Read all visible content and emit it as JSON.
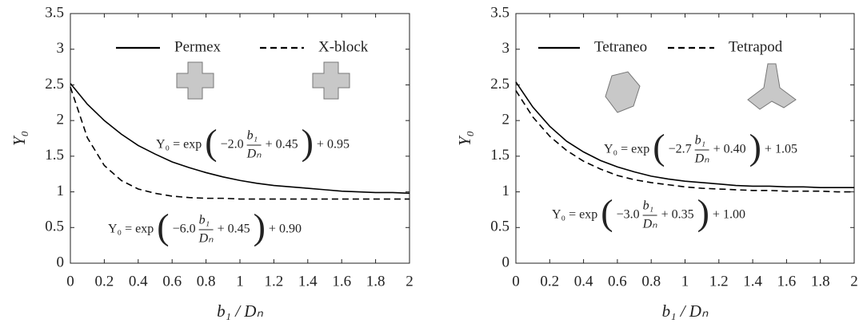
{
  "chart_data": [
    {
      "type": "line",
      "xlabel": "b₁ / Dₙ",
      "ylabel": "Y₀",
      "x": [
        0,
        0.1,
        0.2,
        0.3,
        0.4,
        0.5,
        0.6,
        0.7,
        0.8,
        0.9,
        1.0,
        1.1,
        1.2,
        1.3,
        1.4,
        1.5,
        1.6,
        1.7,
        1.8,
        1.9,
        2.0
      ],
      "xlim": [
        0,
        2
      ],
      "xticks": [
        0,
        0.2,
        0.4,
        0.6,
        0.8,
        1,
        1.2,
        1.4,
        1.6,
        1.8,
        2
      ],
      "ylim": [
        0,
        3.5
      ],
      "yticks": [
        0,
        0.5,
        1,
        1.5,
        2,
        2.5,
        3,
        3.5
      ],
      "legend": "top",
      "series": [
        {
          "name": "Permex",
          "color": "#000000",
          "linestyle": "solid",
          "values": [
            2.52,
            2.23,
            2.0,
            1.81,
            1.65,
            1.53,
            1.42,
            1.34,
            1.27,
            1.21,
            1.16,
            1.12,
            1.09,
            1.07,
            1.05,
            1.03,
            1.01,
            1.0,
            0.99,
            0.99,
            0.98
          ]
        },
        {
          "name": "X-block",
          "color": "#000000",
          "linestyle": "dashed",
          "values": [
            2.47,
            1.76,
            1.37,
            1.16,
            1.04,
            0.98,
            0.94,
            0.92,
            0.91,
            0.91,
            0.9,
            0.9,
            0.9,
            0.9,
            0.9,
            0.9,
            0.9,
            0.9,
            0.9,
            0.9,
            0.9
          ]
        }
      ],
      "annotations": [
        {
          "lhs": "Y₀ = exp",
          "open": "(",
          "coef": "−2.0",
          "num": "b₁",
          "den": "Dₙ",
          "inner": "+ 0.45",
          "close": ")",
          "tail": "+ 0.95"
        },
        {
          "lhs": "Y₀ = exp",
          "open": "(",
          "coef": "−6.0",
          "num": "b₁",
          "den": "Dₙ",
          "inner": "+ 0.45",
          "close": ")",
          "tail": "+ 0.90"
        }
      ]
    },
    {
      "type": "line",
      "xlabel": "b₁ / Dₙ",
      "ylabel": "Y₀",
      "x": [
        0,
        0.1,
        0.2,
        0.3,
        0.4,
        0.5,
        0.6,
        0.7,
        0.8,
        0.9,
        1.0,
        1.1,
        1.2,
        1.3,
        1.4,
        1.5,
        1.6,
        1.7,
        1.8,
        1.9,
        2.0
      ],
      "xlim": [
        0,
        2
      ],
      "xticks": [
        0,
        0.2,
        0.4,
        0.6,
        0.8,
        1,
        1.2,
        1.4,
        1.6,
        1.8,
        2
      ],
      "ylim": [
        0,
        3.5
      ],
      "yticks": [
        0,
        0.5,
        1,
        1.5,
        2,
        2.5,
        3,
        3.5
      ],
      "legend": "top",
      "series": [
        {
          "name": "Tetraneo",
          "color": "#000000",
          "linestyle": "solid",
          "values": [
            2.54,
            2.19,
            1.92,
            1.71,
            1.56,
            1.44,
            1.35,
            1.28,
            1.22,
            1.18,
            1.15,
            1.13,
            1.11,
            1.09,
            1.08,
            1.08,
            1.07,
            1.07,
            1.06,
            1.06,
            1.06
          ]
        },
        {
          "name": "Tetrapod",
          "color": "#000000",
          "linestyle": "dashed",
          "values": [
            2.42,
            2.05,
            1.78,
            1.58,
            1.43,
            1.32,
            1.23,
            1.17,
            1.13,
            1.1,
            1.07,
            1.05,
            1.04,
            1.03,
            1.02,
            1.02,
            1.01,
            1.01,
            1.01,
            1.0,
            1.0
          ]
        }
      ],
      "annotations": [
        {
          "lhs": "Y₀ = exp",
          "open": "(",
          "coef": "−2.7",
          "num": "b₁",
          "den": "Dₙ",
          "inner": "+ 0.40",
          "close": ")",
          "tail": "+ 1.05"
        },
        {
          "lhs": "Y₀ = exp",
          "open": "(",
          "coef": "−3.0",
          "num": "b₁",
          "den": "Dₙ",
          "inner": "+ 0.35",
          "close": ")",
          "tail": "+ 1.00"
        }
      ]
    }
  ]
}
